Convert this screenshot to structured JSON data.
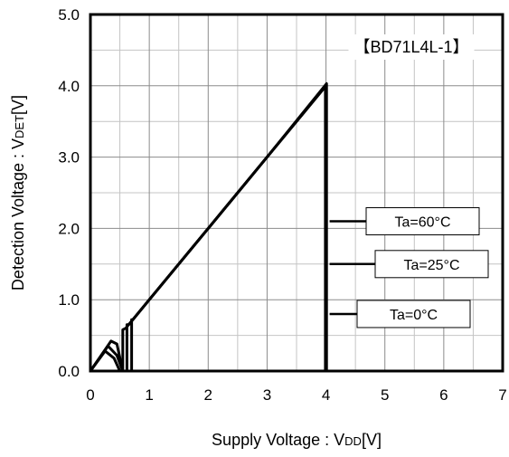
{
  "chart_data": {
    "type": "line",
    "title": "【BD71L4L-1】",
    "xlabel": {
      "main": "Supply Voltage : V",
      "sub": "DD",
      "unit": "[V]"
    },
    "ylabel": {
      "main": "Detection Voltage : V",
      "sub": "DET",
      "unit": "[V]"
    },
    "xlim": [
      0,
      7
    ],
    "ylim": [
      0,
      5
    ],
    "x_ticks": [
      "0",
      "1",
      "2",
      "3",
      "4",
      "5",
      "6",
      "7"
    ],
    "y_ticks": [
      "0.0",
      "1.0",
      "2.0",
      "3.0",
      "4.0",
      "5.0"
    ],
    "grid": true,
    "series": [
      {
        "name": "Ta=60°C",
        "x": [
          0.0,
          0.25,
          0.4,
          0.5,
          0.55,
          0.55,
          0.6,
          1.0,
          2.0,
          3.0,
          3.99,
          3.99,
          4.0
        ],
        "y": [
          0.0,
          0.28,
          0.18,
          0.0,
          0.0,
          0.58,
          0.6,
          1.0,
          2.0,
          3.0,
          3.99,
          0.0,
          0.0
        ]
      },
      {
        "name": "Ta=25°C",
        "x": [
          0.0,
          0.3,
          0.45,
          0.55,
          0.62,
          0.62,
          0.65,
          1.0,
          2.0,
          3.0,
          4.0,
          4.0,
          4.0
        ],
        "y": [
          0.0,
          0.35,
          0.22,
          0.0,
          0.0,
          0.65,
          0.65,
          1.0,
          2.0,
          3.0,
          4.0,
          0.0,
          0.0
        ]
      },
      {
        "name": "Ta=0°C",
        "x": [
          0.0,
          0.35,
          0.45,
          0.55,
          0.7,
          0.7,
          0.72,
          1.0,
          2.0,
          3.0,
          4.01,
          4.01,
          4.02
        ],
        "y": [
          0.0,
          0.42,
          0.38,
          0.0,
          0.0,
          0.72,
          0.72,
          1.0,
          2.0,
          3.0,
          4.03,
          0.0,
          0.0
        ]
      }
    ],
    "callouts": [
      {
        "label": "Ta=60°C",
        "target": [
          4.0,
          2.1
        ]
      },
      {
        "label": "Ta=25°C",
        "target": [
          4.0,
          1.5
        ]
      },
      {
        "label": "Ta=0°C",
        "target": [
          4.0,
          0.8
        ]
      }
    ]
  }
}
